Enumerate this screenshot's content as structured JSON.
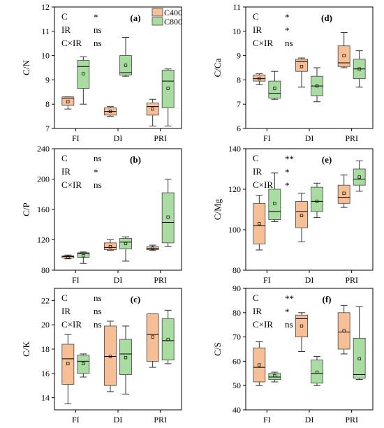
{
  "legend": [
    {
      "name": "C400",
      "color": "#f7bf95"
    },
    {
      "name": "C800",
      "color": "#a8dca0"
    }
  ],
  "chart_data": [
    {
      "type": "box",
      "panel_label": "(a)",
      "ylabel": "C/N",
      "ylim": [
        7,
        12
      ],
      "yticks": [
        7,
        8,
        9,
        10,
        11,
        12
      ],
      "categories": [
        "FI",
        "DI",
        "PRI"
      ],
      "stats": [
        {
          "label": "C",
          "sig": "*"
        },
        {
          "label": "IR",
          "sig": "ns"
        },
        {
          "label": "C×IR",
          "sig": "ns"
        }
      ],
      "series": [
        {
          "name": "C400",
          "boxes": [
            {
              "min": 7.8,
              "q1": 7.95,
              "median": 8.25,
              "q3": 8.3,
              "max": 8.3,
              "mean": 8.1
            },
            {
              "min": 7.5,
              "q1": 7.55,
              "median": 7.7,
              "q3": 7.85,
              "max": 7.9,
              "mean": 7.7
            },
            {
              "min": 7.1,
              "q1": 7.55,
              "median": 7.9,
              "q3": 8.05,
              "max": 8.2,
              "mean": 7.8
            }
          ]
        },
        {
          "name": "C800",
          "boxes": [
            {
              "min": 8.0,
              "q1": 8.65,
              "median": 9.55,
              "q3": 9.8,
              "max": 9.95,
              "mean": 9.25
            },
            {
              "min": 9.15,
              "q1": 9.2,
              "median": 9.3,
              "q3": 10.0,
              "max": 10.75,
              "mean": 9.6
            },
            {
              "min": 7.1,
              "q1": 7.85,
              "median": 8.95,
              "q3": 9.4,
              "max": 9.45,
              "mean": 8.65
            }
          ]
        }
      ]
    },
    {
      "type": "box",
      "panel_label": "(d)",
      "ylabel": "C/Ca",
      "ylim": [
        6,
        11
      ],
      "yticks": [
        6,
        7,
        8,
        9,
        10,
        11
      ],
      "categories": [
        "FI",
        "DI",
        "PRI"
      ],
      "stats": [
        {
          "label": "C",
          "sig": "*"
        },
        {
          "label": "IR",
          "sig": "*"
        },
        {
          "label": "C×IR",
          "sig": "ns"
        }
      ],
      "series": [
        {
          "name": "C400",
          "boxes": [
            {
              "min": 7.8,
              "q1": 7.95,
              "median": 8.05,
              "q3": 8.2,
              "max": 8.25,
              "mean": 8.05
            },
            {
              "min": 7.7,
              "q1": 8.35,
              "median": 8.75,
              "q3": 8.85,
              "max": 8.9,
              "mean": 8.55
            },
            {
              "min": 8.5,
              "q1": 8.55,
              "median": 8.7,
              "q3": 9.4,
              "max": 9.95,
              "mean": 9.0
            }
          ]
        },
        {
          "name": "C800",
          "boxes": [
            {
              "min": 7.2,
              "q1": 7.25,
              "median": 7.45,
              "q3": 7.95,
              "max": 8.35,
              "mean": 7.65
            },
            {
              "min": 7.1,
              "q1": 7.35,
              "median": 7.75,
              "q3": 8.15,
              "max": 8.5,
              "mean": 7.75
            },
            {
              "min": 7.7,
              "q1": 8.05,
              "median": 8.45,
              "q3": 8.85,
              "max": 9.2,
              "mean": 8.45
            }
          ]
        }
      ]
    },
    {
      "type": "box",
      "panel_label": "(b)",
      "ylabel": "C/P",
      "ylim": [
        80,
        240
      ],
      "yticks": [
        80,
        120,
        160,
        200,
        240
      ],
      "categories": [
        "FI",
        "DI",
        "PRI"
      ],
      "stats": [
        {
          "label": "C",
          "sig": "ns"
        },
        {
          "label": "IR",
          "sig": "*"
        },
        {
          "label": "C×IR",
          "sig": "ns"
        }
      ],
      "series": [
        {
          "name": "C400",
          "boxes": [
            {
              "min": 95,
              "q1": 96,
              "median": 98,
              "q3": 99,
              "max": 100,
              "mean": 97
            },
            {
              "min": 106,
              "q1": 107,
              "median": 110,
              "q3": 116,
              "max": 120,
              "mean": 111
            },
            {
              "min": 106,
              "q1": 107,
              "median": 109,
              "q3": 111,
              "max": 113,
              "mean": 109
            }
          ]
        },
        {
          "name": "C800",
          "boxes": [
            {
              "min": 89,
              "q1": 97,
              "median": 102,
              "q3": 103,
              "max": 104,
              "mean": 99
            },
            {
              "min": 92,
              "q1": 108,
              "median": 117,
              "q3": 122,
              "max": 124,
              "mean": 115
            },
            {
              "min": 111,
              "q1": 116,
              "median": 143,
              "q3": 182,
              "max": 200,
              "mean": 150
            }
          ]
        }
      ]
    },
    {
      "type": "box",
      "panel_label": "(e)",
      "ylabel": "C/Mg",
      "ylim": [
        80,
        140
      ],
      "yticks": [
        80,
        100,
        120,
        140
      ],
      "categories": [
        "FI",
        "DI",
        "PRI"
      ],
      "stats": [
        {
          "label": "C",
          "sig": "**"
        },
        {
          "label": "IR",
          "sig": "*"
        },
        {
          "label": "C×IR",
          "sig": "*"
        }
      ],
      "series": [
        {
          "name": "C400",
          "boxes": [
            {
              "min": 90,
              "q1": 93,
              "median": 102,
              "q3": 113,
              "max": 117,
              "mean": 103
            },
            {
              "min": 94,
              "q1": 101,
              "median": 109,
              "q3": 114,
              "max": 118,
              "mean": 107
            },
            {
              "min": 111,
              "q1": 113,
              "median": 116,
              "q3": 122,
              "max": 127,
              "mean": 118
            }
          ]
        },
        {
          "name": "C800",
          "boxes": [
            {
              "min": 104,
              "q1": 105,
              "median": 109,
              "q3": 120,
              "max": 128,
              "mean": 113
            },
            {
              "min": 106,
              "q1": 109,
              "median": 114,
              "q3": 121,
              "max": 123,
              "mean": 114
            },
            {
              "min": 119,
              "q1": 122,
              "median": 125,
              "q3": 130,
              "max": 134,
              "mean": 126
            }
          ]
        }
      ]
    },
    {
      "type": "box",
      "panel_label": "(c)",
      "ylabel": "C/K",
      "ylim": [
        13,
        23
      ],
      "yticks": [
        14,
        16,
        18,
        20,
        22
      ],
      "categories": [
        "FI",
        "DI",
        "PRI"
      ],
      "stats": [
        {
          "label": "C",
          "sig": "ns"
        },
        {
          "label": "IR",
          "sig": "ns"
        },
        {
          "label": "C×IR",
          "sig": "ns"
        }
      ],
      "series": [
        {
          "name": "C400",
          "boxes": [
            {
              "min": 13.5,
              "q1": 15.1,
              "median": 17.2,
              "q3": 18.4,
              "max": 19.2,
              "mean": 16.8
            },
            {
              "min": 14.5,
              "q1": 15.0,
              "median": 17.4,
              "q3": 19.9,
              "max": 20.3,
              "mean": 17.4
            },
            {
              "min": 16.5,
              "q1": 17.0,
              "median": 19.2,
              "q3": 20.9,
              "max": 20.9,
              "mean": 19.0
            }
          ]
        },
        {
          "name": "C800",
          "boxes": [
            {
              "min": 15.7,
              "q1": 16.0,
              "median": 17.0,
              "q3": 17.5,
              "max": 17.6,
              "mean": 16.8
            },
            {
              "min": 14.3,
              "q1": 15.9,
              "median": 17.6,
              "q3": 18.8,
              "max": 19.9,
              "mean": 17.3
            },
            {
              "min": 16.8,
              "q1": 17.1,
              "median": 18.7,
              "q3": 20.5,
              "max": 21.2,
              "mean": 18.8
            }
          ]
        }
      ]
    },
    {
      "type": "box",
      "panel_label": "(f)",
      "ylabel": "C/S",
      "ylim": [
        40,
        90
      ],
      "yticks": [
        40,
        50,
        60,
        70,
        80,
        90
      ],
      "categories": [
        "FI",
        "DI",
        "PRI"
      ],
      "stats": [
        {
          "label": "C",
          "sig": "**"
        },
        {
          "label": "IR",
          "sig": "*"
        },
        {
          "label": "C×IR",
          "sig": "ns"
        }
      ],
      "series": [
        {
          "name": "C400",
          "boxes": [
            {
              "min": 50,
              "q1": 51.5,
              "median": 57.5,
              "q3": 65.5,
              "max": 68,
              "mean": 58.5
            },
            {
              "min": 64,
              "q1": 70,
              "median": 77.5,
              "q3": 79,
              "max": 80,
              "mean": 74.5
            },
            {
              "min": 63,
              "q1": 65,
              "median": 72,
              "q3": 80,
              "max": 83,
              "mean": 72.5
            }
          ]
        },
        {
          "name": "C800",
          "boxes": [
            {
              "min": 51.5,
              "q1": 52.5,
              "median": 53.5,
              "q3": 55,
              "max": 55.5,
              "mean": 54
            },
            {
              "min": 50,
              "q1": 51,
              "median": 55,
              "q3": 60.5,
              "max": 62,
              "mean": 55.5
            },
            {
              "min": 52.5,
              "q1": 53,
              "median": 54.5,
              "q3": 69.5,
              "max": 82.5,
              "mean": 61
            }
          ]
        }
      ]
    }
  ]
}
